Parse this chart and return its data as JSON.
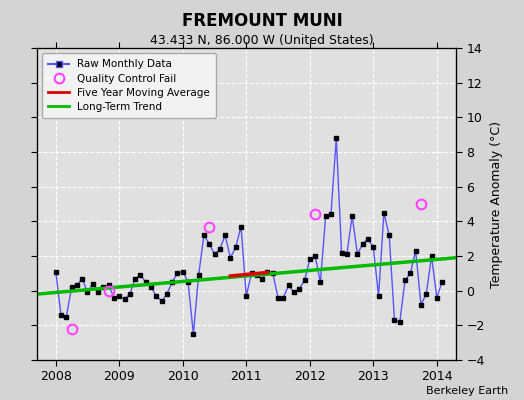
{
  "title": "FREMOUNT MUNI",
  "subtitle": "43.433 N, 86.000 W (United States)",
  "ylabel": "Temperature Anomaly (°C)",
  "credit": "Berkeley Earth",
  "xlim": [
    2007.7,
    2014.3
  ],
  "ylim": [
    -4,
    14
  ],
  "yticks": [
    -4,
    -2,
    0,
    2,
    4,
    6,
    8,
    10,
    12,
    14
  ],
  "xticks": [
    2008,
    2009,
    2010,
    2011,
    2012,
    2013,
    2014
  ],
  "background_color": "#d4d4d4",
  "plot_bg_color": "#e0e0e0",
  "raw_monthly": {
    "x": [
      2008.0,
      2008.083,
      2008.167,
      2008.25,
      2008.333,
      2008.417,
      2008.5,
      2008.583,
      2008.667,
      2008.75,
      2008.833,
      2008.917,
      2009.0,
      2009.083,
      2009.167,
      2009.25,
      2009.333,
      2009.417,
      2009.5,
      2009.583,
      2009.667,
      2009.75,
      2009.833,
      2009.917,
      2010.0,
      2010.083,
      2010.167,
      2010.25,
      2010.333,
      2010.417,
      2010.5,
      2010.583,
      2010.667,
      2010.75,
      2010.833,
      2010.917,
      2011.0,
      2011.083,
      2011.167,
      2011.25,
      2011.333,
      2011.417,
      2011.5,
      2011.583,
      2011.667,
      2011.75,
      2011.833,
      2011.917,
      2012.0,
      2012.083,
      2012.167,
      2012.25,
      2012.333,
      2012.417,
      2012.5,
      2012.583,
      2012.667,
      2012.75,
      2012.833,
      2012.917,
      2013.0,
      2013.083,
      2013.167,
      2013.25,
      2013.333,
      2013.417,
      2013.5,
      2013.583,
      2013.667,
      2013.75,
      2013.833,
      2013.917,
      2014.0,
      2014.083
    ],
    "y": [
      1.1,
      -1.4,
      -1.5,
      0.2,
      0.3,
      0.7,
      -0.1,
      0.4,
      -0.1,
      0.2,
      0.3,
      -0.4,
      -0.3,
      -0.5,
      -0.2,
      0.7,
      0.9,
      0.5,
      0.2,
      -0.3,
      -0.6,
      -0.2,
      0.5,
      1.0,
      1.1,
      0.5,
      -2.5,
      0.9,
      3.2,
      2.7,
      2.1,
      2.4,
      3.2,
      1.9,
      2.5,
      3.7,
      -0.3,
      1.0,
      0.9,
      0.7,
      1.1,
      1.0,
      -0.4,
      -0.4,
      0.3,
      -0.1,
      0.1,
      0.6,
      1.8,
      2.0,
      0.5,
      4.3,
      4.4,
      8.8,
      2.2,
      2.1,
      4.3,
      2.1,
      2.7,
      3.0,
      2.5,
      -0.3,
      4.5,
      3.2,
      -1.7,
      -1.8,
      0.6,
      1.0,
      2.3,
      -0.8,
      -0.2,
      2.0,
      -0.4,
      0.5
    ]
  },
  "qc_fail": {
    "x": [
      2008.25,
      2008.833,
      2010.417,
      2012.083,
      2013.75
    ],
    "y": [
      -2.2,
      0.0,
      3.7,
      4.4,
      5.0
    ]
  },
  "five_year_ma": {
    "x": [
      2010.75,
      2011.333
    ],
    "y": [
      0.85,
      1.05
    ]
  },
  "long_term_trend": {
    "x": [
      2007.7,
      2014.3
    ],
    "y": [
      -0.2,
      1.9
    ]
  },
  "raw_line_color": "#5555ff",
  "raw_marker_color": "#000000",
  "qc_color": "#ff44ff",
  "ma_color": "#dd0000",
  "trend_color": "#00bb00",
  "legend_bg": "#f2f2f2"
}
